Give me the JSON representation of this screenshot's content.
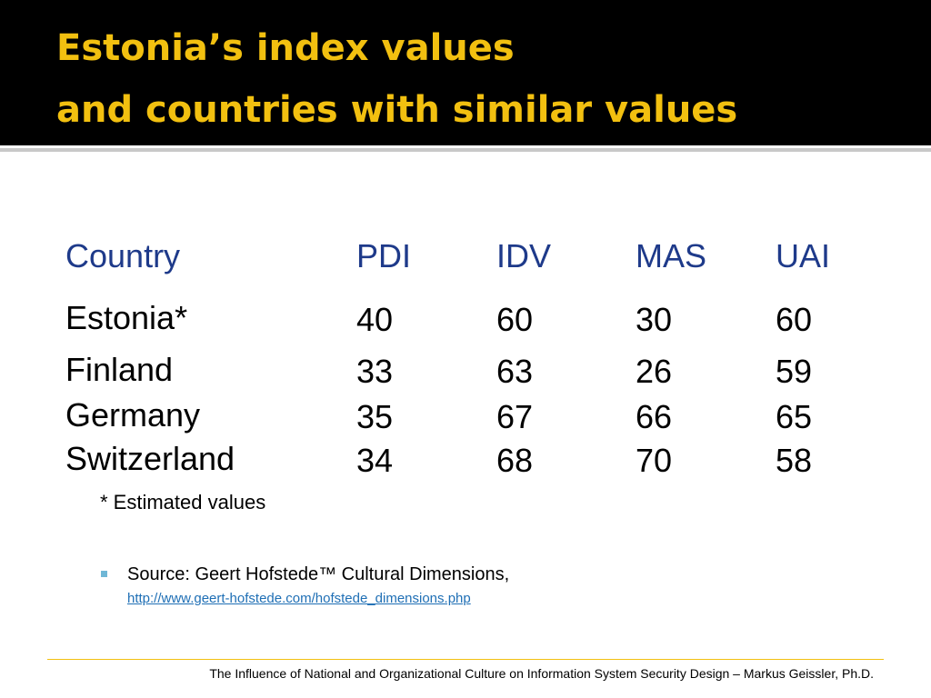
{
  "header": {
    "title_lines": [
      "Estonia’s index values",
      "and countries with similar values"
    ]
  },
  "table": {
    "columns": [
      "Country",
      "PDI",
      "IDV",
      "MAS",
      "UAI"
    ],
    "rows": [
      [
        "Estonia*",
        40,
        60,
        30,
        60
      ],
      [
        "Finland",
        33,
        63,
        26,
        59
      ],
      [
        "Germany",
        35,
        67,
        66,
        65
      ],
      [
        "Switzerland",
        34,
        68,
        70,
        58
      ]
    ]
  },
  "footnote": "* Estimated values",
  "source": {
    "text": "Source: Geert Hofstede™ Cultural Dimensions,",
    "link": "http://www.geert-hofstede.com/hofstede_dimensions.php"
  },
  "footer": "The Influence of National and Organizational Culture on Information System Security Design – Markus Geissler, Ph.D."
}
